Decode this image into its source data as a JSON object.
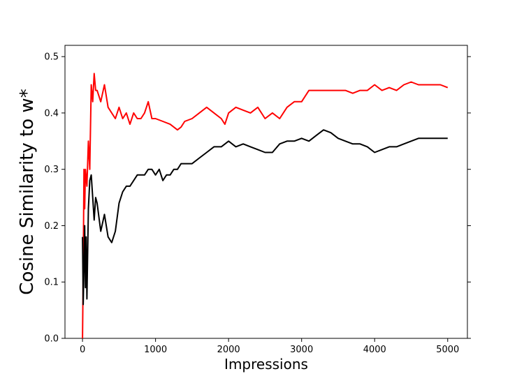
{
  "chart_data": {
    "type": "line",
    "title": "",
    "xlabel": "Impressions",
    "ylabel": "Cosine Similarity to w*",
    "xlim": [
      -240,
      5270
    ],
    "ylim": [
      0.0,
      0.52
    ],
    "xticks": [
      0,
      1000,
      2000,
      3000,
      4000,
      5000
    ],
    "yticks": [
      0.0,
      0.1,
      0.2,
      0.3,
      0.4,
      0.5
    ],
    "xtick_labels": [
      "0",
      "1000",
      "2000",
      "3000",
      "4000",
      "5000"
    ],
    "ytick_labels": [
      "0.0",
      "0.1",
      "0.2",
      "0.3",
      "0.4",
      "0.5"
    ],
    "grid": false,
    "legend": "none",
    "series": [
      {
        "color": "#ff0000",
        "x": [
          0,
          10,
          20,
          30,
          40,
          60,
          80,
          100,
          120,
          140,
          160,
          180,
          200,
          250,
          300,
          350,
          400,
          450,
          500,
          550,
          600,
          650,
          700,
          750,
          800,
          850,
          900,
          950,
          1000,
          1100,
          1200,
          1300,
          1350,
          1400,
          1500,
          1600,
          1700,
          1800,
          1900,
          1950,
          2000,
          2100,
          2200,
          2300,
          2400,
          2500,
          2600,
          2700,
          2800,
          2900,
          3000,
          3100,
          3200,
          3300,
          3400,
          3500,
          3600,
          3700,
          3800,
          3900,
          4000,
          4100,
          4200,
          4300,
          4400,
          4500,
          4600,
          4700,
          4800,
          4900,
          5000
        ],
        "y": [
          0.0,
          0.12,
          0.3,
          0.23,
          0.3,
          0.27,
          0.35,
          0.3,
          0.45,
          0.42,
          0.47,
          0.44,
          0.44,
          0.42,
          0.45,
          0.41,
          0.4,
          0.39,
          0.41,
          0.39,
          0.4,
          0.38,
          0.4,
          0.39,
          0.39,
          0.4,
          0.42,
          0.39,
          0.39,
          0.385,
          0.38,
          0.37,
          0.375,
          0.385,
          0.39,
          0.4,
          0.41,
          0.4,
          0.39,
          0.38,
          0.4,
          0.41,
          0.405,
          0.4,
          0.41,
          0.39,
          0.4,
          0.39,
          0.41,
          0.42,
          0.42,
          0.44,
          0.44,
          0.44,
          0.44,
          0.44,
          0.44,
          0.435,
          0.44,
          0.44,
          0.45,
          0.44,
          0.445,
          0.44,
          0.45,
          0.455,
          0.45,
          0.45,
          0.45,
          0.45,
          0.445
        ]
      },
      {
        "color": "#000000",
        "x": [
          0,
          10,
          20,
          30,
          40,
          50,
          60,
          80,
          100,
          120,
          140,
          160,
          180,
          200,
          250,
          300,
          350,
          400,
          450,
          500,
          550,
          600,
          650,
          700,
          750,
          800,
          850,
          900,
          950,
          1000,
          1050,
          1100,
          1150,
          1200,
          1250,
          1300,
          1350,
          1400,
          1500,
          1600,
          1700,
          1800,
          1900,
          2000,
          2100,
          2200,
          2300,
          2400,
          2500,
          2600,
          2700,
          2800,
          2900,
          3000,
          3100,
          3200,
          3300,
          3400,
          3500,
          3600,
          3700,
          3800,
          3900,
          4000,
          4100,
          4200,
          4300,
          4400,
          4500,
          4600,
          4700,
          4800,
          4900,
          5000
        ],
        "y": [
          0.18,
          0.06,
          0.13,
          0.2,
          0.09,
          0.18,
          0.07,
          0.23,
          0.28,
          0.29,
          0.25,
          0.21,
          0.25,
          0.24,
          0.19,
          0.22,
          0.18,
          0.17,
          0.19,
          0.24,
          0.26,
          0.27,
          0.27,
          0.28,
          0.29,
          0.29,
          0.29,
          0.3,
          0.3,
          0.29,
          0.3,
          0.28,
          0.29,
          0.29,
          0.3,
          0.3,
          0.31,
          0.31,
          0.31,
          0.32,
          0.33,
          0.34,
          0.34,
          0.35,
          0.34,
          0.345,
          0.34,
          0.335,
          0.33,
          0.33,
          0.345,
          0.35,
          0.35,
          0.355,
          0.35,
          0.36,
          0.37,
          0.365,
          0.355,
          0.35,
          0.345,
          0.345,
          0.34,
          0.33,
          0.335,
          0.34,
          0.34,
          0.345,
          0.35,
          0.355,
          0.355,
          0.355,
          0.355,
          0.355
        ]
      }
    ]
  }
}
